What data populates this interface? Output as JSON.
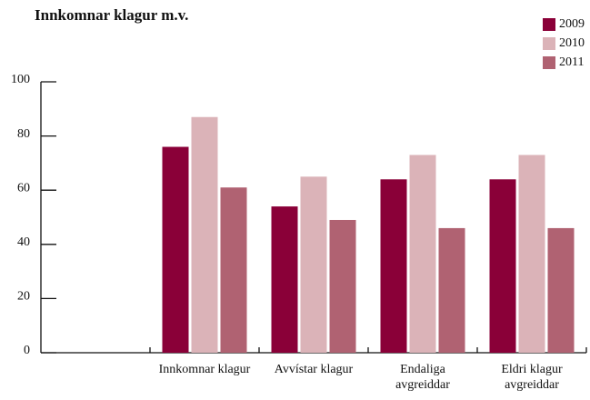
{
  "chart_data": {
    "type": "bar",
    "title": "Innkomnar klagur m.v.",
    "categories": [
      null,
      "Innkomnar klagur",
      "Avvístar klagur",
      "Endaliga avgreiddar",
      "Eldri klagur avgreiddar"
    ],
    "series": [
      {
        "name": "2009",
        "color": "#8a0038",
        "values": [
          null,
          76,
          54,
          64,
          64
        ]
      },
      {
        "name": "2010",
        "color": "#dbb3b8",
        "values": [
          null,
          87,
          65,
          73,
          73
        ]
      },
      {
        "name": "2011",
        "color": "#b06272",
        "values": [
          null,
          61,
          49,
          46,
          46
        ]
      }
    ],
    "ylim": [
      0,
      100
    ],
    "yticks": [
      0,
      20,
      40,
      60,
      80,
      100
    ],
    "legend": "top-right"
  }
}
